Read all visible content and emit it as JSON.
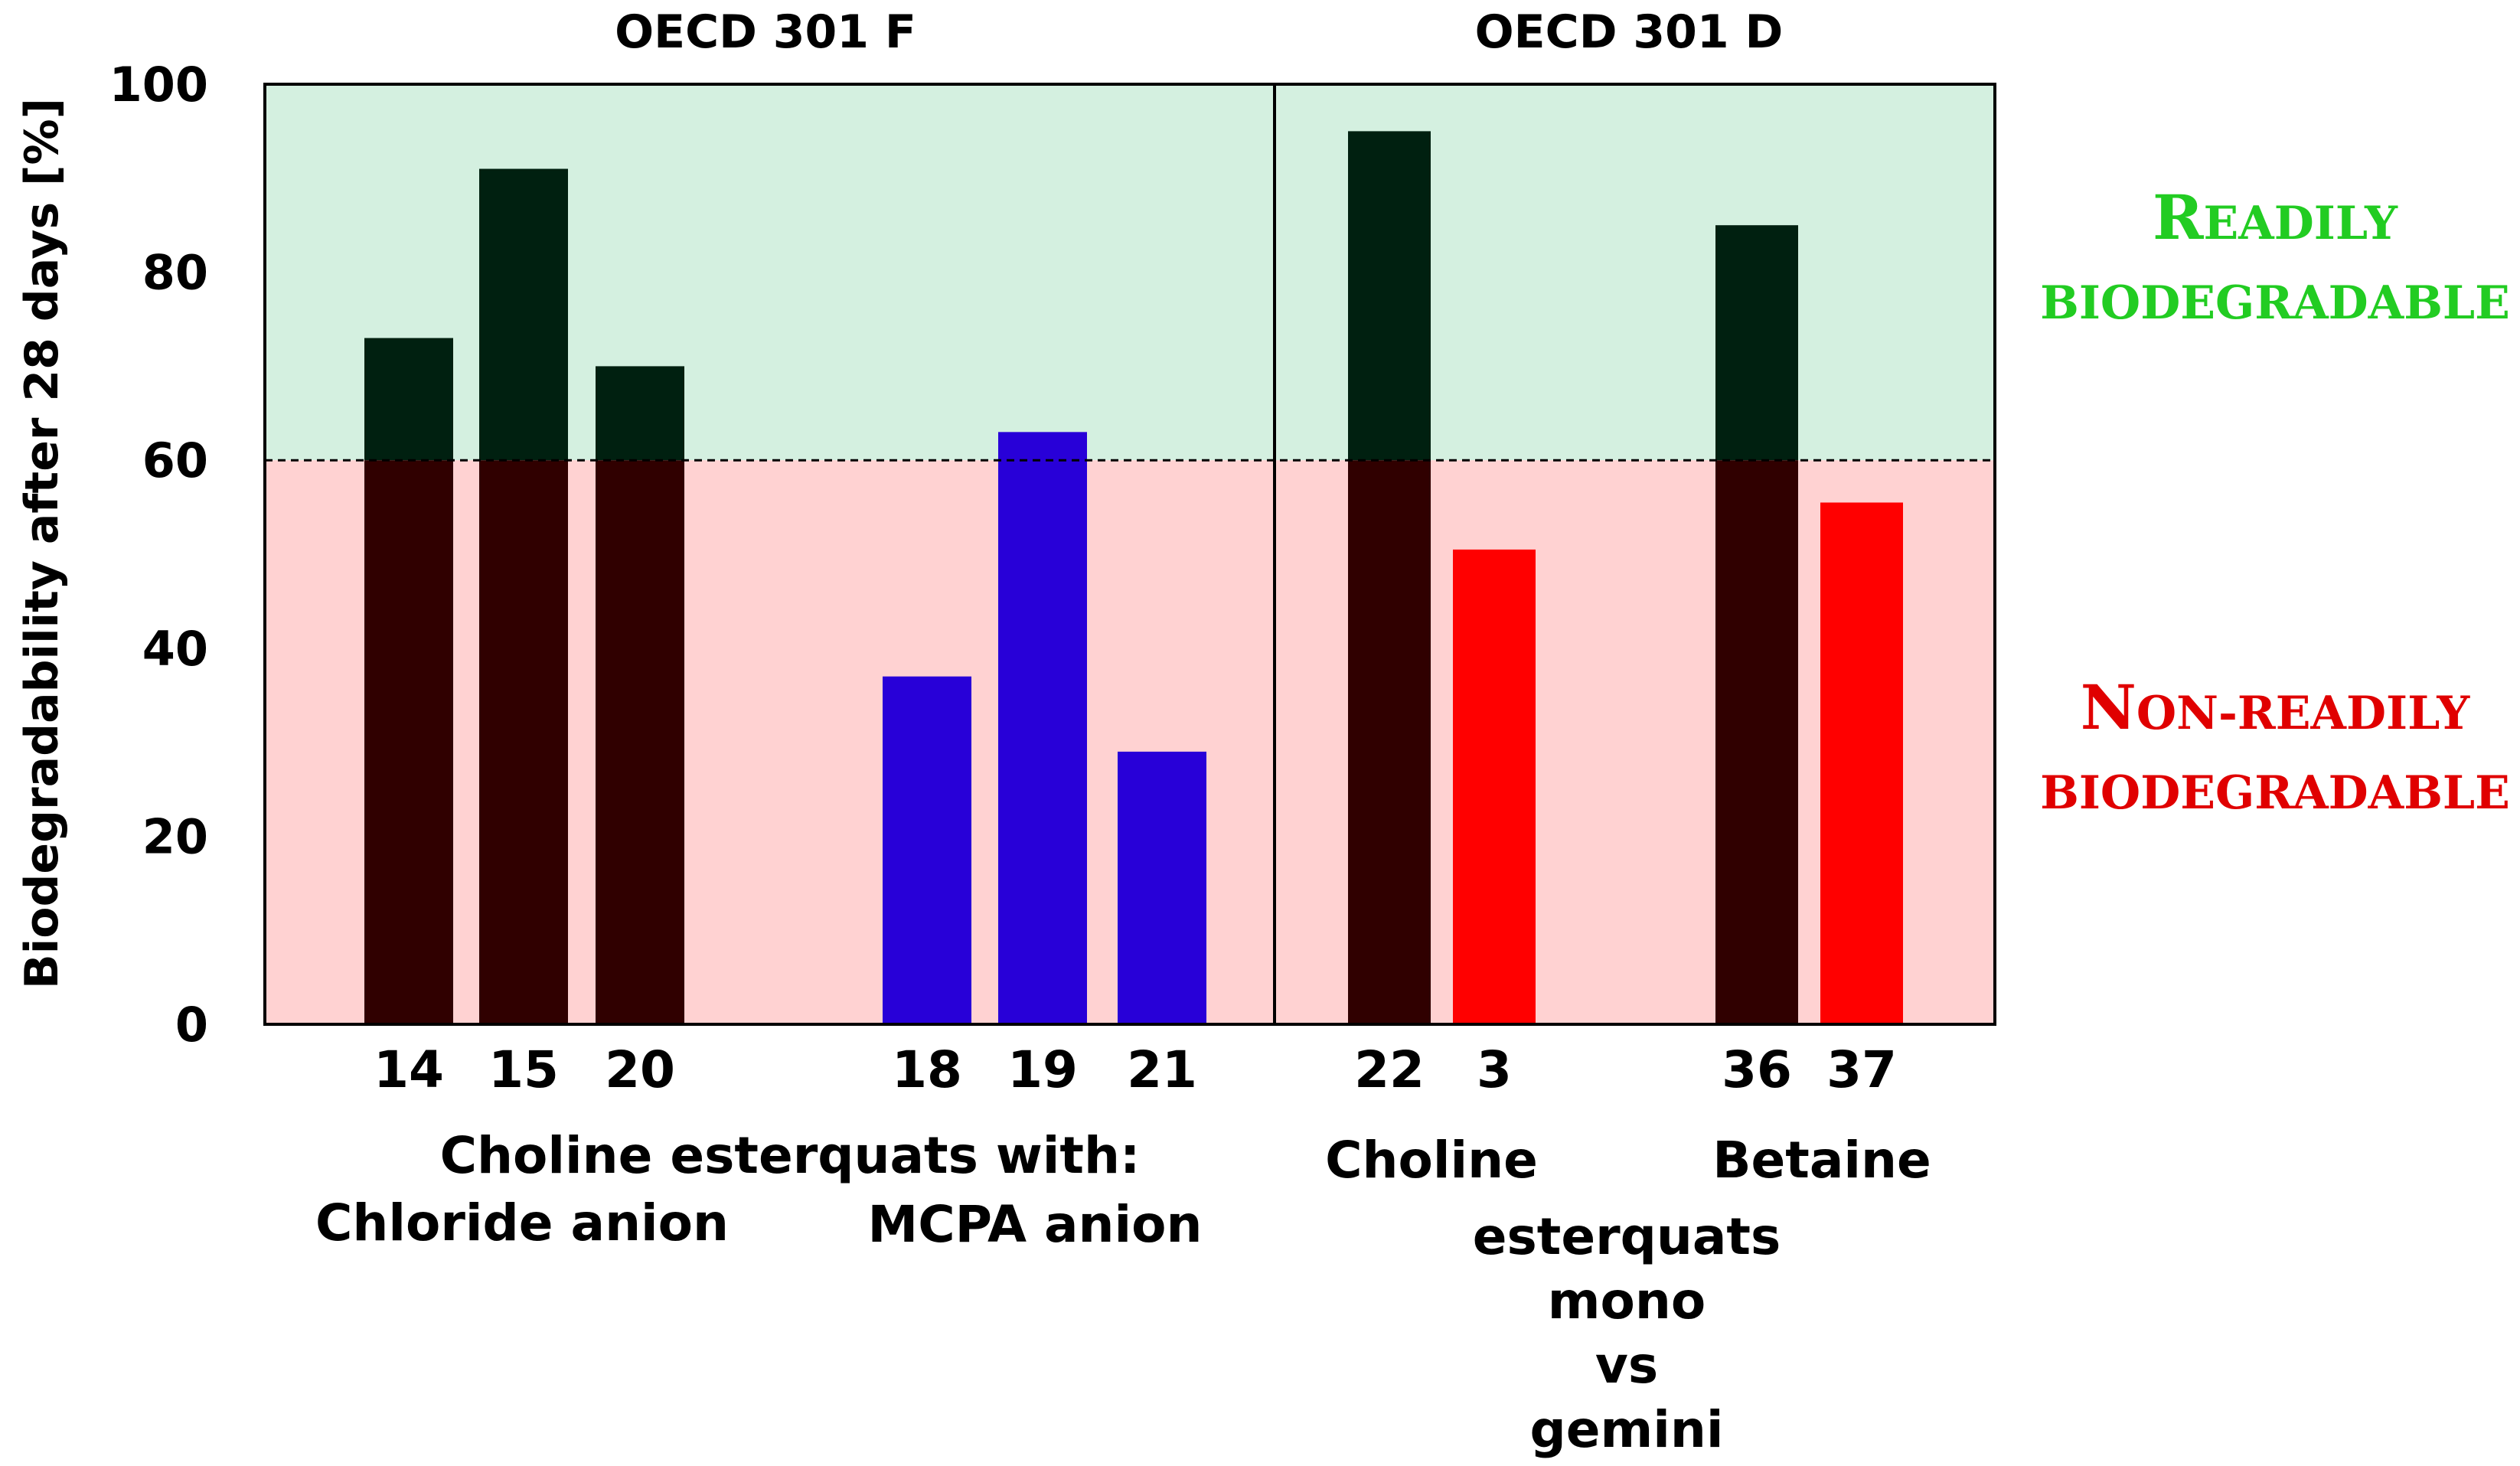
{
  "chart_data": {
    "type": "bar",
    "ylabel": "Biodegradability after 28 days [%]",
    "ylim": [
      0,
      100
    ],
    "yticks": [
      0,
      20,
      40,
      60,
      80,
      100
    ],
    "threshold": 60,
    "grid": false,
    "panels": [
      {
        "title": "OECD 301 F",
        "bars": [
          {
            "label": "14",
            "value": 73,
            "kind": "chloride"
          },
          {
            "label": "15",
            "value": 91,
            "kind": "chloride"
          },
          {
            "label": "20",
            "value": 70,
            "kind": "chloride"
          },
          {
            "label": "18",
            "value": 37,
            "kind": "mcpa"
          },
          {
            "label": "19",
            "value": 63,
            "kind": "mcpa"
          },
          {
            "label": "21",
            "value": 29,
            "kind": "mcpa"
          }
        ]
      },
      {
        "title": "OECD 301 D",
        "bars": [
          {
            "label": "22",
            "value": 95,
            "kind": "mono"
          },
          {
            "label": "3",
            "value": 50.5,
            "kind": "gemini"
          },
          {
            "label": "36",
            "value": 85,
            "kind": "mono"
          },
          {
            "label": "37",
            "value": 55.5,
            "kind": "gemini"
          }
        ]
      }
    ],
    "zones": {
      "readily": {
        "cap": "R",
        "rest": "EADILY",
        "line2": "BIODEGRADABLE"
      },
      "non_readily": {
        "cap": "N",
        "rest": "ON-READILY",
        "line2": "BIODEGRADABLE"
      }
    },
    "group_labels": {
      "left_heading": "Choline esterquats with:",
      "chloride": "Chloride anion",
      "mcpa": "MCPA anion",
      "choline": "Choline",
      "betaine": "Betaine",
      "esterquats": "esterquats",
      "mono": "mono",
      "vs": "vs",
      "gemini": "gemini"
    },
    "colors": {
      "readily_zone": "#d4f0e0",
      "non_readily_zone": "#ffd2d2",
      "dark_top": "#002010",
      "dark_bottom": "#300000",
      "mcpa": "#2800d8",
      "gemini": "#ff0000",
      "readily_text": "#22cc22",
      "non_readily_text": "#e00000",
      "mcpa_text": "#1a1aee",
      "gemini_text": "#ee1111"
    }
  }
}
